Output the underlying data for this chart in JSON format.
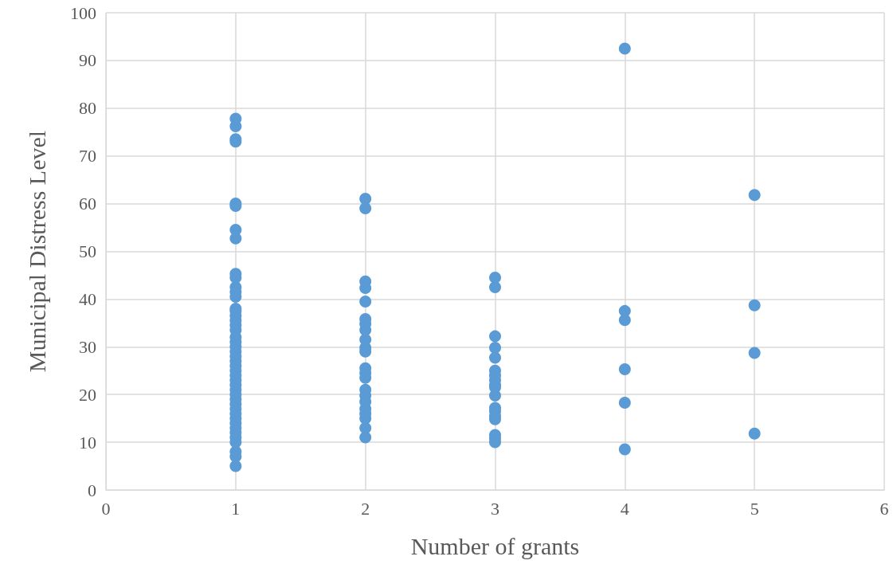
{
  "chart_data": {
    "type": "scatter",
    "xlabel": "Number of grants",
    "ylabel": "Municipal Distress Level",
    "xlim": [
      0,
      6
    ],
    "xticks": [
      0,
      1,
      2,
      3,
      4,
      5,
      6
    ],
    "ylim": [
      0,
      100
    ],
    "yticks": [
      0,
      10,
      20,
      30,
      40,
      50,
      60,
      70,
      80,
      90,
      100
    ],
    "grid": true,
    "marker": "circle",
    "series": [
      {
        "color": "#5b9bd5",
        "x": [
          1,
          1,
          1,
          1,
          1,
          1,
          1,
          1,
          1,
          1,
          1,
          1,
          1,
          1,
          1,
          1,
          1,
          1,
          1,
          1,
          1,
          1,
          1,
          1,
          1,
          1,
          1,
          1,
          1,
          1,
          1,
          1,
          1,
          1,
          1,
          1,
          1,
          1,
          1,
          1,
          1,
          1,
          1,
          1,
          1,
          2,
          2,
          2,
          2,
          2,
          2,
          2,
          2,
          2,
          2,
          2,
          2,
          2,
          2,
          2,
          2,
          2,
          2,
          2,
          2,
          2,
          2,
          3,
          3,
          3,
          3,
          3,
          3,
          3,
          3,
          3,
          3,
          3,
          3,
          3,
          3,
          3,
          3,
          3,
          3,
          4,
          4,
          4,
          4,
          4,
          4,
          5,
          5,
          5,
          5
        ],
        "values": [
          77.8,
          76.2,
          73.5,
          73,
          60,
          59.5,
          54.5,
          52.7,
          45.3,
          44.5,
          42.5,
          41.5,
          40.5,
          38,
          37.5,
          36.5,
          35.5,
          34.5,
          33.5,
          32,
          31,
          30,
          29,
          28,
          27,
          26,
          25,
          24,
          23,
          22,
          21,
          20,
          19,
          18,
          17,
          16,
          15,
          14,
          13,
          12,
          11,
          10,
          8,
          7,
          5,
          61,
          59,
          43.7,
          42.3,
          39.5,
          35.8,
          34.8,
          33.5,
          31.5,
          29.8,
          29,
          25.5,
          24.5,
          23.5,
          21,
          19.8,
          18.5,
          17,
          16,
          15,
          13,
          11,
          44.5,
          42.5,
          32.2,
          29.8,
          27.7,
          25,
          24,
          23,
          22,
          21.5,
          19.8,
          17.2,
          16.5,
          15.5,
          14.8,
          11.5,
          10.8,
          10,
          92.5,
          37.5,
          35.6,
          25.3,
          18.3,
          8.5,
          61.8,
          38.7,
          28.7,
          11.8
        ]
      }
    ]
  }
}
